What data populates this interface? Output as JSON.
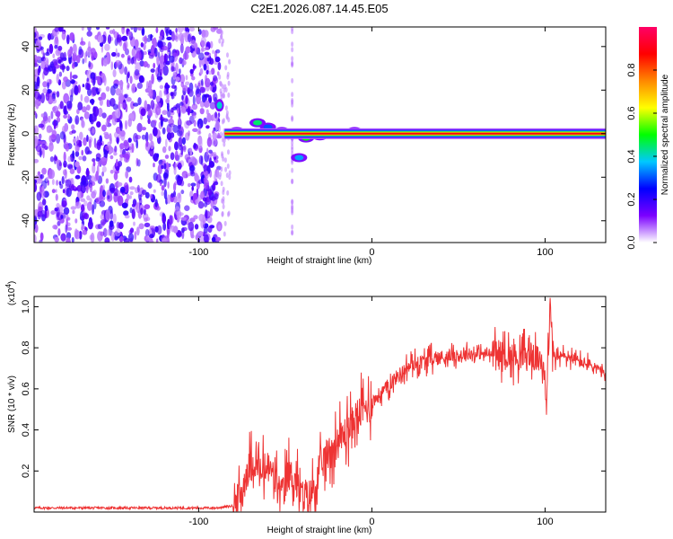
{
  "title": "C2E1.2026.087.14.45.E05",
  "chart_data": [
    {
      "type": "heatmap",
      "name": "spectrogram",
      "title": "C2E1.2026.087.14.45.E05",
      "xlabel": "Height of straight line (km)",
      "ylabel": "Frequency (Hz)",
      "xlim": [
        -195,
        135
      ],
      "ylim": [
        -50,
        49
      ],
      "xticks": [
        -100,
        0,
        100
      ],
      "xtick_labels": [
        "-100",
        "0",
        "100"
      ],
      "yticks": [
        -40,
        -20,
        0,
        20,
        40
      ],
      "ytick_labels": [
        "-40",
        "-20",
        "0",
        "20",
        "40"
      ],
      "colorbar": {
        "label": "Normalized spectral amplitude",
        "range": [
          0,
          1
        ],
        "ticks": [
          0.0,
          0.2,
          0.4,
          0.6,
          0.8
        ],
        "tick_labels": [
          "0.0",
          "0.2",
          "0.4",
          "0.6",
          "0.8"
        ],
        "colormap": [
          "#ffffff",
          "#7b00ff",
          "#0000ff",
          "#00c8ff",
          "#00ff00",
          "#ffff00",
          "#ff8800",
          "#ff0000",
          "#ff0066"
        ]
      },
      "regions": [
        {
          "description": "broadband noise",
          "x_range": [
            -195,
            -88
          ],
          "freq_range": [
            -50,
            49
          ],
          "amplitude": 0.15
        },
        {
          "description": "blob",
          "x": -88,
          "freq": 13,
          "amplitude": 0.4
        },
        {
          "description": "tonal line near 0 Hz",
          "x_range": [
            -85,
            135
          ],
          "freq": 0,
          "amplitude": 0.9
        }
      ]
    },
    {
      "type": "line",
      "name": "snr",
      "xlabel": "Height of straight line (km)",
      "ylabel": "SNR (10 * v/v)",
      "y_multiplier_label": "(x10",
      "y_multiplier_exponent": "4",
      "y_multiplier_close": ")",
      "xlim": [
        -195,
        135
      ],
      "ylim": [
        0,
        1.05
      ],
      "xticks": [
        -100,
        0,
        100
      ],
      "xtick_labels": [
        "-100",
        "0",
        "100"
      ],
      "yticks": [
        0.2,
        0.4,
        0.6,
        0.8,
        1.0
      ],
      "ytick_labels": [
        "0.2",
        "0.4",
        "0.6",
        "0.8",
        "1.0"
      ],
      "color": "#ee3333",
      "x": [
        -195,
        -180,
        -160,
        -140,
        -120,
        -100,
        -90,
        -80,
        -76,
        -72,
        -68,
        -64,
        -60,
        -56,
        -52,
        -48,
        -44,
        -40,
        -36,
        -32,
        -28,
        -24,
        -20,
        -16,
        -12,
        -8,
        -4,
        0,
        4,
        8,
        12,
        16,
        20,
        24,
        28,
        32,
        36,
        40,
        45,
        50,
        55,
        60,
        65,
        70,
        75,
        80,
        85,
        90,
        95,
        100,
        101,
        102,
        103,
        104,
        106,
        110,
        115,
        120,
        125,
        130,
        135
      ],
      "y": [
        0.02,
        0.02,
        0.02,
        0.02,
        0.02,
        0.02,
        0.02,
        0.03,
        0.07,
        0.2,
        0.25,
        0.18,
        0.22,
        0.16,
        0.08,
        0.19,
        0.15,
        0.06,
        0.08,
        0.14,
        0.25,
        0.3,
        0.34,
        0.38,
        0.42,
        0.48,
        0.5,
        0.53,
        0.57,
        0.6,
        0.64,
        0.67,
        0.7,
        0.72,
        0.73,
        0.74,
        0.75,
        0.75,
        0.76,
        0.76,
        0.77,
        0.77,
        0.77,
        0.77,
        0.77,
        0.76,
        0.76,
        0.76,
        0.75,
        0.7,
        0.55,
        0.8,
        1.02,
        0.8,
        0.75,
        0.76,
        0.75,
        0.73,
        0.72,
        0.7,
        0.66
      ]
    }
  ]
}
